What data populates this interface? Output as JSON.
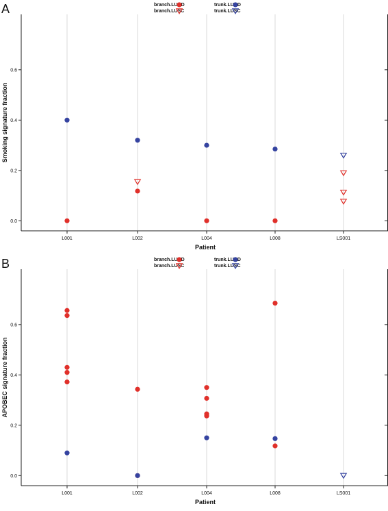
{
  "colors": {
    "LUAD": "#e0302a",
    "LUSC": "#e0302a",
    "trunk": "#3543a0",
    "grid": "#d8d8d8",
    "axis": "#222222"
  },
  "legend": {
    "items": [
      {
        "label": "branch.LUAD",
        "group": "branch",
        "marker": "circle",
        "color": "#e0302a"
      },
      {
        "label": "branch.LUSC",
        "group": "branch",
        "marker": "triangle-down-open",
        "color": "#e0302a"
      },
      {
        "label": "trunk.LUAD",
        "group": "trunk",
        "marker": "circle",
        "color": "#3543a0"
      },
      {
        "label": "trunk.LUSC",
        "group": "trunk",
        "marker": "triangle-down-open",
        "color": "#3543a0"
      }
    ]
  },
  "chart_data": [
    {
      "panel": "A",
      "type": "scatter",
      "xlabel": "Patient",
      "ylabel": "Smoking signature fraction",
      "categories": [
        "L001",
        "L002",
        "L004",
        "L008",
        "LS001"
      ],
      "ylim": [
        -0.04,
        0.82
      ],
      "yticks": [
        0.0,
        0.2,
        0.4,
        0.6
      ],
      "ytick_labels": [
        "0.0",
        "0.2",
        "0.4",
        "0.6"
      ],
      "grid": "vertical",
      "legend_position": "top",
      "series": [
        {
          "name": "branch.LUAD",
          "marker": "circle",
          "color": "#e0302a",
          "points": [
            {
              "x": "L001",
              "y": 0.0
            },
            {
              "x": "L002",
              "y": 0.118
            },
            {
              "x": "L004",
              "y": 0.0
            },
            {
              "x": "L008",
              "y": 0.0
            }
          ]
        },
        {
          "name": "branch.LUSC",
          "marker": "triangle-down-open",
          "color": "#e0302a",
          "points": [
            {
              "x": "L002",
              "y": 0.155
            },
            {
              "x": "LS001",
              "y": 0.19
            },
            {
              "x": "LS001",
              "y": 0.113
            },
            {
              "x": "LS001",
              "y": 0.077
            }
          ]
        },
        {
          "name": "trunk.LUAD",
          "marker": "circle",
          "color": "#3543a0",
          "points": [
            {
              "x": "L001",
              "y": 0.4
            },
            {
              "x": "L002",
              "y": 0.32
            },
            {
              "x": "L004",
              "y": 0.3
            },
            {
              "x": "L008",
              "y": 0.285
            }
          ]
        },
        {
          "name": "trunk.LUSC",
          "marker": "triangle-down-open",
          "color": "#3543a0",
          "points": [
            {
              "x": "LS001",
              "y": 0.26
            }
          ]
        }
      ]
    },
    {
      "panel": "B",
      "type": "scatter",
      "xlabel": "Patient",
      "ylabel": "APOBEC signature fraction",
      "categories": [
        "L001",
        "L002",
        "L004",
        "L008",
        "LS001"
      ],
      "ylim": [
        -0.04,
        0.82
      ],
      "yticks": [
        0.0,
        0.2,
        0.4,
        0.6
      ],
      "ytick_labels": [
        "0.0",
        "0.2",
        "0.4",
        "0.6"
      ],
      "grid": "vertical",
      "legend_position": "top",
      "series": [
        {
          "name": "branch.LUAD",
          "marker": "circle",
          "color": "#e0302a",
          "points": [
            {
              "x": "L001",
              "y": 0.656
            },
            {
              "x": "L001",
              "y": 0.636
            },
            {
              "x": "L001",
              "y": 0.43
            },
            {
              "x": "L001",
              "y": 0.41
            },
            {
              "x": "L001",
              "y": 0.372
            },
            {
              "x": "L002",
              "y": 0.343
            },
            {
              "x": "L002",
              "y": 0.0
            },
            {
              "x": "L004",
              "y": 0.35
            },
            {
              "x": "L004",
              "y": 0.307
            },
            {
              "x": "L004",
              "y": 0.245
            },
            {
              "x": "L004",
              "y": 0.237
            },
            {
              "x": "L008",
              "y": 0.685
            },
            {
              "x": "L008",
              "y": 0.118
            }
          ]
        },
        {
          "name": "branch.LUSC",
          "marker": "triangle-down-open",
          "color": "#e0302a",
          "points": []
        },
        {
          "name": "trunk.LUAD",
          "marker": "circle",
          "color": "#3543a0",
          "points": [
            {
              "x": "L001",
              "y": 0.09
            },
            {
              "x": "L002",
              "y": 0.0
            },
            {
              "x": "L004",
              "y": 0.15
            },
            {
              "x": "L008",
              "y": 0.147
            }
          ]
        },
        {
          "name": "trunk.LUSC",
          "marker": "triangle-down-open",
          "color": "#3543a0",
          "points": [
            {
              "x": "LS001",
              "y": 0.0
            }
          ]
        }
      ]
    }
  ]
}
